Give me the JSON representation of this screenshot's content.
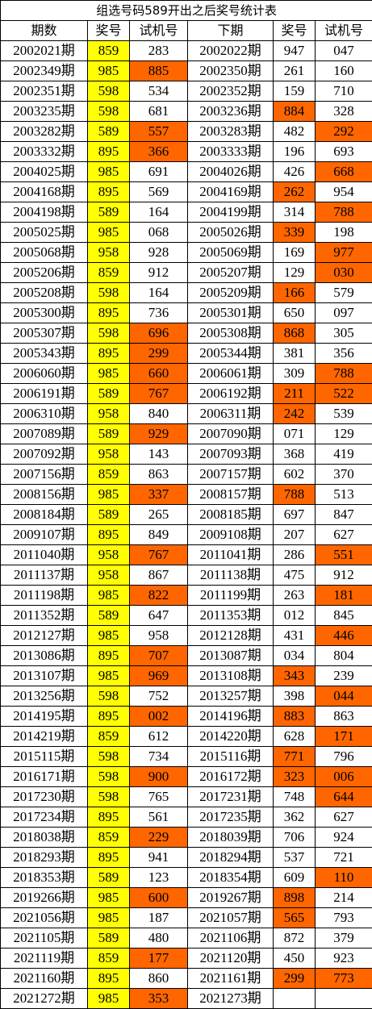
{
  "title": "组选号码589开出之后奖号统计表",
  "header": [
    "期数",
    "奖号",
    "试机号",
    "下期",
    "奖号",
    "试机号"
  ],
  "highlight": {
    "prize_color": "#ffff00",
    "hit_color": "#ff6600"
  },
  "rows": [
    {
      "cells": [
        "2002021期",
        "859",
        "283",
        "2002022期",
        "947",
        "047"
      ],
      "hits": []
    },
    {
      "cells": [
        "2002349期",
        "985",
        "885",
        "2002350期",
        "261",
        "160"
      ],
      "hits": [
        2
      ]
    },
    {
      "cells": [
        "2002351期",
        "598",
        "534",
        "2002352期",
        "159",
        "710"
      ],
      "hits": []
    },
    {
      "cells": [
        "2003235期",
        "598",
        "681",
        "2003236期",
        "884",
        "328"
      ],
      "hits": [
        4
      ]
    },
    {
      "cells": [
        "2003282期",
        "589",
        "557",
        "2003283期",
        "482",
        "292"
      ],
      "hits": [
        2,
        5
      ]
    },
    {
      "cells": [
        "2003332期",
        "895",
        "366",
        "2003333期",
        "196",
        "693"
      ],
      "hits": [
        2
      ]
    },
    {
      "cells": [
        "2004025期",
        "985",
        "691",
        "2004026期",
        "426",
        "668"
      ],
      "hits": [
        5
      ]
    },
    {
      "cells": [
        "2004168期",
        "895",
        "569",
        "2004169期",
        "262",
        "954"
      ],
      "hits": [
        4
      ]
    },
    {
      "cells": [
        "2004198期",
        "589",
        "164",
        "2004199期",
        "314",
        "788"
      ],
      "hits": [
        5
      ]
    },
    {
      "cells": [
        "2005025期",
        "985",
        "068",
        "2005026期",
        "339",
        "198"
      ],
      "hits": [
        4
      ]
    },
    {
      "cells": [
        "2005068期",
        "958",
        "928",
        "2005069期",
        "169",
        "977"
      ],
      "hits": [
        5
      ]
    },
    {
      "cells": [
        "2005206期",
        "859",
        "912",
        "2005207期",
        "129",
        "030"
      ],
      "hits": [
        5
      ]
    },
    {
      "cells": [
        "2005208期",
        "598",
        "164",
        "2005209期",
        "166",
        "579"
      ],
      "hits": [
        4
      ]
    },
    {
      "cells": [
        "2005300期",
        "895",
        "736",
        "2005301期",
        "650",
        "097"
      ],
      "hits": []
    },
    {
      "cells": [
        "2005307期",
        "598",
        "696",
        "2005308期",
        "868",
        "305"
      ],
      "hits": [
        2,
        4
      ]
    },
    {
      "cells": [
        "2005343期",
        "895",
        "299",
        "2005344期",
        "381",
        "356"
      ],
      "hits": [
        2
      ]
    },
    {
      "cells": [
        "2006060期",
        "985",
        "660",
        "2006061期",
        "309",
        "788"
      ],
      "hits": [
        2,
        5
      ]
    },
    {
      "cells": [
        "2006191期",
        "589",
        "767",
        "2006192期",
        "211",
        "522"
      ],
      "hits": [
        2,
        4,
        5
      ]
    },
    {
      "cells": [
        "2006310期",
        "958",
        "840",
        "2006311期",
        "242",
        "539"
      ],
      "hits": [
        4
      ]
    },
    {
      "cells": [
        "2007089期",
        "589",
        "929",
        "2007090期",
        "071",
        "129"
      ],
      "hits": [
        2
      ]
    },
    {
      "cells": [
        "2007092期",
        "958",
        "143",
        "2007093期",
        "368",
        "419"
      ],
      "hits": []
    },
    {
      "cells": [
        "2007156期",
        "859",
        "863",
        "2007157期",
        "602",
        "370"
      ],
      "hits": []
    },
    {
      "cells": [
        "2008156期",
        "985",
        "337",
        "2008157期",
        "788",
        "513"
      ],
      "hits": [
        2,
        4
      ]
    },
    {
      "cells": [
        "2008184期",
        "589",
        "265",
        "2008185期",
        "697",
        "847"
      ],
      "hits": []
    },
    {
      "cells": [
        "2009107期",
        "895",
        "849",
        "2009108期",
        "207",
        "627"
      ],
      "hits": []
    },
    {
      "cells": [
        "2011040期",
        "958",
        "767",
        "2011041期",
        "286",
        "551"
      ],
      "hits": [
        2,
        5
      ]
    },
    {
      "cells": [
        "2011137期",
        "958",
        "867",
        "2011138期",
        "475",
        "912"
      ],
      "hits": []
    },
    {
      "cells": [
        "2011198期",
        "985",
        "822",
        "2011199期",
        "263",
        "181"
      ],
      "hits": [
        2,
        5
      ]
    },
    {
      "cells": [
        "2011352期",
        "589",
        "647",
        "2011353期",
        "012",
        "845"
      ],
      "hits": []
    },
    {
      "cells": [
        "2012127期",
        "985",
        "958",
        "2012128期",
        "431",
        "446"
      ],
      "hits": [
        5
      ]
    },
    {
      "cells": [
        "2013086期",
        "895",
        "707",
        "2013087期",
        "034",
        "804"
      ],
      "hits": [
        2
      ]
    },
    {
      "cells": [
        "2013107期",
        "985",
        "969",
        "2013108期",
        "343",
        "239"
      ],
      "hits": [
        2,
        4
      ]
    },
    {
      "cells": [
        "2013256期",
        "598",
        "752",
        "2013257期",
        "398",
        "044"
      ],
      "hits": [
        5
      ]
    },
    {
      "cells": [
        "2014195期",
        "895",
        "002",
        "2014196期",
        "883",
        "863"
      ],
      "hits": [
        2,
        4
      ]
    },
    {
      "cells": [
        "2014219期",
        "859",
        "612",
        "2014220期",
        "628",
        "171"
      ],
      "hits": [
        5
      ]
    },
    {
      "cells": [
        "2015115期",
        "598",
        "734",
        "2015116期",
        "771",
        "796"
      ],
      "hits": [
        4
      ]
    },
    {
      "cells": [
        "2016171期",
        "598",
        "900",
        "2016172期",
        "323",
        "006"
      ],
      "hits": [
        2,
        4,
        5
      ]
    },
    {
      "cells": [
        "2017230期",
        "598",
        "765",
        "2017231期",
        "748",
        "644"
      ],
      "hits": [
        5
      ]
    },
    {
      "cells": [
        "2017234期",
        "895",
        "561",
        "2017235期",
        "362",
        "627"
      ],
      "hits": []
    },
    {
      "cells": [
        "2018038期",
        "859",
        "229",
        "2018039期",
        "706",
        "924"
      ],
      "hits": [
        2
      ]
    },
    {
      "cells": [
        "2018293期",
        "895",
        "941",
        "2018294期",
        "537",
        "721"
      ],
      "hits": []
    },
    {
      "cells": [
        "2018353期",
        "589",
        "123",
        "2018354期",
        "609",
        "110"
      ],
      "hits": [
        5
      ]
    },
    {
      "cells": [
        "2019266期",
        "985",
        "600",
        "2019267期",
        "898",
        "214"
      ],
      "hits": [
        2,
        4
      ]
    },
    {
      "cells": [
        "2021056期",
        "985",
        "187",
        "2021057期",
        "565",
        "793"
      ],
      "hits": [
        4
      ]
    },
    {
      "cells": [
        "2021105期",
        "589",
        "480",
        "2021106期",
        "872",
        "379"
      ],
      "hits": []
    },
    {
      "cells": [
        "2021119期",
        "859",
        "177",
        "2021120期",
        "450",
        "923"
      ],
      "hits": [
        2
      ]
    },
    {
      "cells": [
        "2021160期",
        "895",
        "860",
        "2021161期",
        "299",
        "773"
      ],
      "hits": [
        4,
        5
      ]
    },
    {
      "cells": [
        "2021272期",
        "985",
        "353",
        "2021273期"
      ],
      "hits": [
        2
      ]
    }
  ]
}
